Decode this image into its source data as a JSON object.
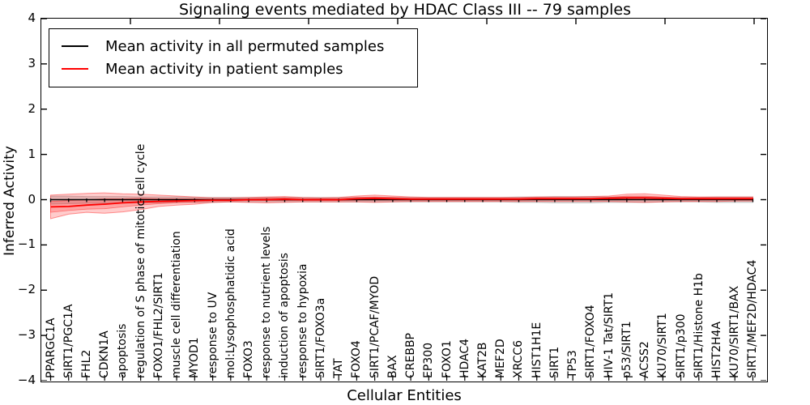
{
  "chart_data": {
    "type": "line",
    "title": "Signaling events mediated by HDAC Class III -- 79 samples",
    "xlabel": "Cellular Entities",
    "ylabel": "Inferred Activity",
    "ylim": [
      -4,
      4
    ],
    "ytick_labels": [
      "4",
      "3",
      "2",
      "1",
      "0",
      "−1",
      "−2",
      "−3",
      "−4"
    ],
    "ytick_values": [
      4,
      3,
      2,
      1,
      0,
      -1,
      -2,
      -3,
      -4
    ],
    "grid": false,
    "legend_position": "upper left",
    "point_markers": "small vertical dashes at every entity on the permuted mean line",
    "categories": [
      "PPARGC1A",
      "SIRT1/PGC1A",
      "FHL2",
      "CDKN1A",
      "apoptosis",
      "regulation of S phase of mitotic cell cycle",
      "FOXO1/FHL2/SIRT1",
      "muscle cell differentiation",
      "MYOD1",
      "response to UV",
      "mol:Lysophosphatidic acid",
      "FOXO3",
      "response to nutrient levels",
      "induction of apoptosis",
      "response to hypoxia",
      "SIRT1/FOXO3a",
      "TAT",
      "FOXO4",
      "SIRT1/PCAF/MYOD",
      "BAX",
      "CREBBP",
      "EP300",
      "FOXO1",
      "HDAC4",
      "KAT2B",
      "MEF2D",
      "XRCC6",
      "HIST1H1E",
      "SIRT1",
      "TP53",
      "SIRT1/FOXO4",
      "HIV-1 Tat/SIRT1",
      "p53/SIRT1",
      "ACSS2",
      "KU70/SIRT1",
      "SIRT1/p300",
      "SIRT1/Histone H1b",
      "HIST2H4A",
      "KU70/SIRT1/BAX",
      "SIRT1/MEF2D/HDAC4"
    ],
    "series": [
      {
        "name": "Mean activity in all permuted samples",
        "color": "#000000",
        "band_fill": "rgba(0,0,0,0.13)",
        "band_edge": "rgba(0,0,0,0.18)",
        "values": [
          0,
          0,
          0,
          0,
          0,
          0,
          0,
          0,
          0,
          0,
          0,
          0,
          0,
          0,
          0,
          0,
          0,
          0,
          0,
          0,
          0,
          0,
          0,
          0,
          0,
          0,
          0,
          0,
          0,
          0,
          0,
          0,
          0,
          0,
          0,
          0,
          0,
          0,
          0,
          0
        ],
        "band_top": [
          0.08,
          0.08,
          0.07,
          0.07,
          0.07,
          0.06,
          0.06,
          0.06,
          0.05,
          0.05,
          0.05,
          0.05,
          0.05,
          0.05,
          0.05,
          0.05,
          0.05,
          0.05,
          0.05,
          0.05,
          0.05,
          0.05,
          0.05,
          0.05,
          0.05,
          0.05,
          0.06,
          0.06,
          0.07,
          0.07,
          0.07,
          0.06,
          0.06,
          0.06,
          0.05,
          0.05,
          0.05,
          0.06,
          0.06,
          0.06
        ],
        "band_bottom": [
          -0.1,
          -0.09,
          -0.08,
          -0.08,
          -0.08,
          -0.07,
          -0.07,
          -0.06,
          -0.06,
          -0.06,
          -0.05,
          -0.05,
          -0.05,
          -0.05,
          -0.05,
          -0.05,
          -0.05,
          -0.05,
          -0.05,
          -0.05,
          -0.05,
          -0.05,
          -0.05,
          -0.05,
          -0.05,
          -0.05,
          -0.06,
          -0.06,
          -0.07,
          -0.07,
          -0.07,
          -0.06,
          -0.06,
          -0.06,
          -0.05,
          -0.05,
          -0.05,
          -0.06,
          -0.06,
          -0.06
        ]
      },
      {
        "name": "Mean activity in patient samples",
        "color": "#ff0000",
        "band_fill": "rgba(255,0,0,0.20)",
        "band_edge": "rgba(255,0,0,0.40)",
        "values": [
          -0.16,
          -0.15,
          -0.12,
          -0.1,
          -0.07,
          -0.05,
          -0.04,
          -0.03,
          -0.02,
          -0.01,
          -0.01,
          0.0,
          0.0,
          0.01,
          0.0,
          0.0,
          0.0,
          0.02,
          0.03,
          0.02,
          0.01,
          0.01,
          0.01,
          0.01,
          0.01,
          0.01,
          0.01,
          0.02,
          0.02,
          0.02,
          0.02,
          0.03,
          0.04,
          0.04,
          0.03,
          0.02,
          0.02,
          0.02,
          0.02,
          0.02
        ],
        "band_top": [
          0.1,
          0.12,
          0.14,
          0.15,
          0.13,
          0.12,
          0.1,
          0.08,
          0.06,
          0.04,
          0.04,
          0.05,
          0.06,
          0.07,
          0.05,
          0.04,
          0.05,
          0.08,
          0.1,
          0.08,
          0.06,
          0.05,
          0.05,
          0.05,
          0.05,
          0.05,
          0.05,
          0.06,
          0.06,
          0.06,
          0.07,
          0.08,
          0.12,
          0.13,
          0.1,
          0.07,
          0.06,
          0.06,
          0.06,
          0.06
        ],
        "band_bottom": [
          -0.42,
          -0.32,
          -0.28,
          -0.3,
          -0.27,
          -0.22,
          -0.15,
          -0.12,
          -0.1,
          -0.06,
          -0.05,
          -0.06,
          -0.07,
          -0.06,
          -0.05,
          -0.05,
          -0.05,
          -0.05,
          -0.06,
          -0.05,
          -0.04,
          -0.04,
          -0.04,
          -0.04,
          -0.04,
          -0.04,
          -0.04,
          -0.04,
          -0.04,
          -0.04,
          -0.04,
          -0.04,
          -0.05,
          -0.06,
          -0.05,
          -0.04,
          -0.04,
          -0.04,
          -0.03,
          -0.03
        ],
        "inner_band_top": [
          -0.04,
          -0.02,
          0.0,
          0.02,
          0.02,
          0.03,
          0.02,
          0.02,
          0.02,
          0.01,
          0.01,
          0.02,
          0.03,
          0.04,
          0.02,
          0.02,
          0.02,
          0.05,
          0.06,
          0.05,
          0.03,
          0.03,
          0.03,
          0.03,
          0.03,
          0.03,
          0.03,
          0.04,
          0.04,
          0.04,
          0.04,
          0.05,
          0.08,
          0.08,
          0.06,
          0.04,
          0.04,
          0.04,
          0.04,
          0.04
        ],
        "inner_band_bottom": [
          -0.28,
          -0.24,
          -0.21,
          -0.2,
          -0.16,
          -0.12,
          -0.09,
          -0.07,
          -0.06,
          -0.03,
          -0.03,
          -0.02,
          -0.02,
          -0.02,
          -0.02,
          -0.02,
          -0.02,
          -0.01,
          -0.01,
          -0.01,
          -0.01,
          -0.01,
          -0.01,
          -0.01,
          -0.01,
          -0.01,
          -0.01,
          0.0,
          0.0,
          0.0,
          0.0,
          0.01,
          0.01,
          0.0,
          0.0,
          0.0,
          0.0,
          0.0,
          0.0,
          0.0
        ]
      }
    ]
  }
}
